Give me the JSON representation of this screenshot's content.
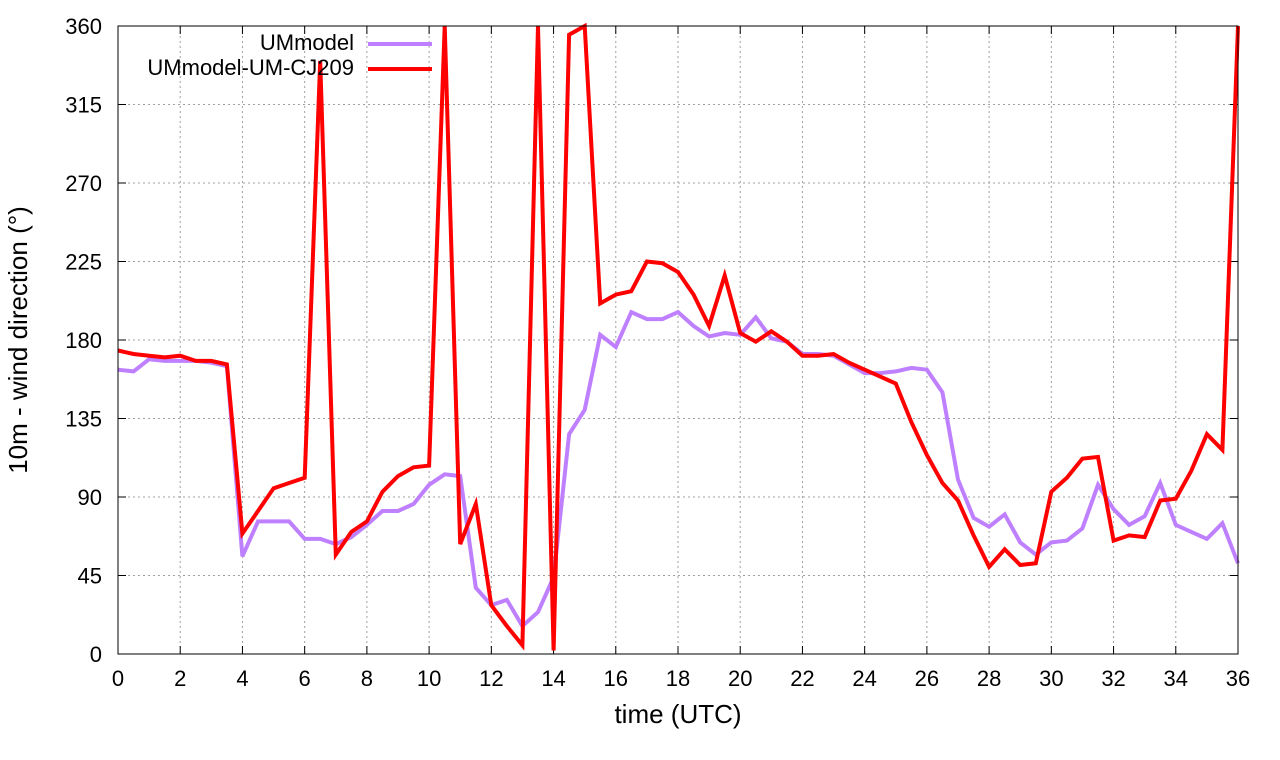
{
  "chart_data": {
    "type": "line",
    "title": "",
    "xlabel": "time (UTC)",
    "ylabel": "10m - wind direction (°)",
    "xlim": [
      0,
      36
    ],
    "ylim": [
      0,
      360
    ],
    "xticks": [
      0,
      2,
      4,
      6,
      8,
      10,
      12,
      14,
      16,
      18,
      20,
      22,
      24,
      26,
      28,
      30,
      32,
      34,
      36
    ],
    "yticks": [
      0,
      45,
      90,
      135,
      180,
      225,
      270,
      315,
      360
    ],
    "grid": true,
    "legend_position": "top-left",
    "series": [
      {
        "name": "UMmodel",
        "color": "#bf80ff",
        "points": [
          [
            0,
            163
          ],
          [
            0.5,
            162
          ],
          [
            1,
            169
          ],
          [
            1.5,
            168
          ],
          [
            2,
            168
          ],
          [
            2.5,
            168
          ],
          [
            3,
            167
          ],
          [
            3.5,
            165
          ],
          [
            4,
            56
          ],
          [
            4.5,
            76
          ],
          [
            5,
            76
          ],
          [
            5.5,
            76
          ],
          [
            6,
            66
          ],
          [
            6.5,
            66
          ],
          [
            7,
            63
          ],
          [
            7.5,
            67
          ],
          [
            8,
            74
          ],
          [
            8.5,
            82
          ],
          [
            9,
            82
          ],
          [
            9.5,
            86
          ],
          [
            10,
            97
          ],
          [
            10.5,
            103
          ],
          [
            11,
            102
          ],
          [
            11.5,
            38
          ],
          [
            12,
            28
          ],
          [
            12.5,
            31
          ],
          [
            13,
            16
          ],
          [
            13.5,
            24
          ],
          [
            14,
            44
          ],
          [
            14.5,
            126
          ],
          [
            15,
            140
          ],
          [
            15.5,
            183
          ],
          [
            16,
            176
          ],
          [
            16.5,
            196
          ],
          [
            17,
            192
          ],
          [
            17.5,
            192
          ],
          [
            18,
            196
          ],
          [
            18.5,
            188
          ],
          [
            19,
            182
          ],
          [
            19.5,
            184
          ],
          [
            20,
            183
          ],
          [
            20.5,
            193
          ],
          [
            21,
            181
          ],
          [
            21.5,
            179
          ],
          [
            22,
            172
          ],
          [
            22.5,
            172
          ],
          [
            23,
            171
          ],
          [
            23.5,
            166
          ],
          [
            24,
            161
          ],
          [
            24.5,
            161
          ],
          [
            25,
            162
          ],
          [
            25.5,
            164
          ],
          [
            26,
            163
          ],
          [
            26.5,
            150
          ],
          [
            27,
            100
          ],
          [
            27.5,
            78
          ],
          [
            28,
            73
          ],
          [
            28.5,
            80
          ],
          [
            29,
            64
          ],
          [
            29.5,
            57
          ],
          [
            30,
            64
          ],
          [
            30.5,
            65
          ],
          [
            31,
            72
          ],
          [
            31.5,
            97
          ],
          [
            32,
            83
          ],
          [
            32.5,
            74
          ],
          [
            33,
            79
          ],
          [
            33.5,
            98
          ],
          [
            34,
            74
          ],
          [
            34.5,
            70
          ],
          [
            35,
            66
          ],
          [
            35.5,
            75
          ],
          [
            36,
            52
          ]
        ]
      },
      {
        "name": "UMmodel-UM-CJ209",
        "color": "#ff0000",
        "points": [
          [
            0,
            174
          ],
          [
            0.5,
            172
          ],
          [
            1,
            171
          ],
          [
            1.5,
            170
          ],
          [
            2,
            171
          ],
          [
            2.5,
            168
          ],
          [
            3,
            168
          ],
          [
            3.5,
            166
          ],
          [
            4,
            69
          ],
          [
            4.5,
            82
          ],
          [
            5,
            95
          ],
          [
            5.5,
            98
          ],
          [
            6,
            101
          ],
          [
            6.5,
            340
          ],
          [
            7,
            57
          ],
          [
            7.5,
            70
          ],
          [
            8,
            76
          ],
          [
            8.5,
            93
          ],
          [
            9,
            102
          ],
          [
            9.5,
            107
          ],
          [
            10,
            108
          ],
          [
            10.5,
            360
          ],
          [
            11,
            63
          ],
          [
            11.5,
            86
          ],
          [
            12,
            28
          ],
          [
            12.5,
            16
          ],
          [
            13,
            5
          ],
          [
            13.5,
            360
          ],
          [
            14,
            2
          ],
          [
            14.5,
            355
          ],
          [
            15,
            360
          ],
          [
            15.5,
            201
          ],
          [
            16,
            206
          ],
          [
            16.5,
            208
          ],
          [
            17,
            225
          ],
          [
            17.5,
            224
          ],
          [
            18,
            219
          ],
          [
            18.5,
            206
          ],
          [
            19,
            188
          ],
          [
            19.5,
            217
          ],
          [
            20,
            184
          ],
          [
            20.5,
            179
          ],
          [
            21,
            185
          ],
          [
            21.5,
            179
          ],
          [
            22,
            171
          ],
          [
            22.5,
            171
          ],
          [
            23,
            172
          ],
          [
            23.5,
            167
          ],
          [
            24,
            163
          ],
          [
            24.5,
            159
          ],
          [
            25,
            155
          ],
          [
            25.5,
            133
          ],
          [
            26,
            114
          ],
          [
            26.5,
            98
          ],
          [
            27,
            88
          ],
          [
            27.5,
            68
          ],
          [
            28,
            50
          ],
          [
            28.5,
            60
          ],
          [
            29,
            51
          ],
          [
            29.5,
            52
          ],
          [
            30,
            93
          ],
          [
            30.5,
            101
          ],
          [
            31,
            112
          ],
          [
            31.5,
            113
          ],
          [
            32,
            65
          ],
          [
            32.5,
            68
          ],
          [
            33,
            67
          ],
          [
            33.5,
            88
          ],
          [
            34,
            89
          ],
          [
            34.5,
            105
          ],
          [
            35,
            126
          ],
          [
            35.5,
            117
          ],
          [
            36,
            360
          ]
        ]
      }
    ]
  }
}
